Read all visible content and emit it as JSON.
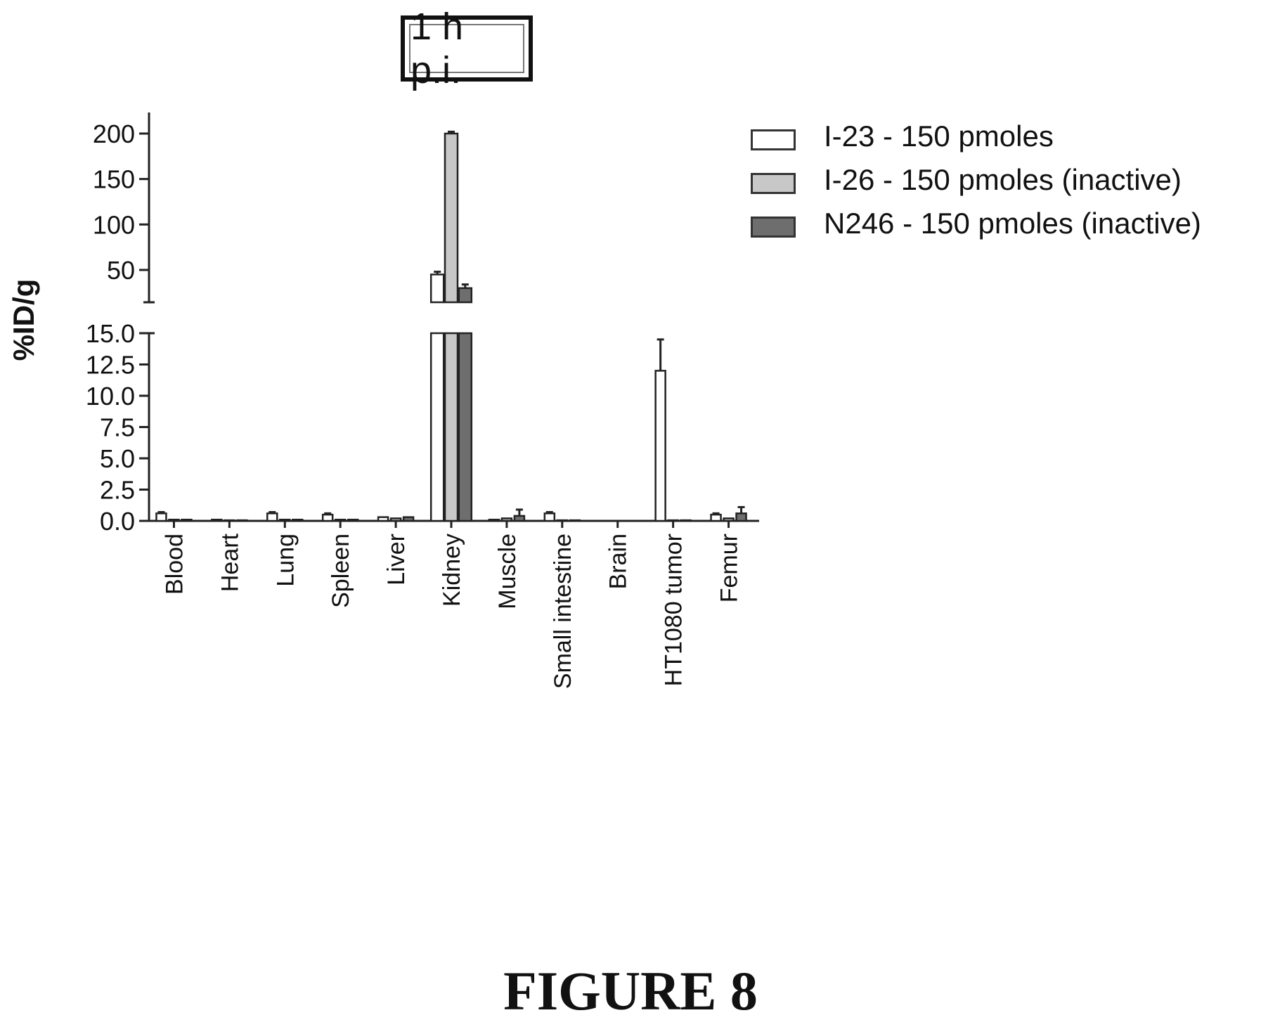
{
  "figure_label": "FIGURE 8",
  "chart_data": {
    "type": "bar",
    "title": "1 h p.i.",
    "xlabel": "",
    "ylabel": "%ID/g",
    "categories": [
      "Blood",
      "Heart",
      "Lung",
      "Spleen",
      "Liver",
      "Kidney",
      "Muscle",
      "Small intestine",
      "Brain",
      "HT1080 tumor",
      "Femur"
    ],
    "series": [
      {
        "name": "I-23 - 150 pmoles",
        "color": "#ffffff",
        "values": [
          0.6,
          0.1,
          0.6,
          0.5,
          0.3,
          45,
          0.1,
          0.6,
          0.0,
          12.0,
          0.5
        ],
        "errors": [
          0.1,
          0.05,
          0.1,
          0.1,
          0.05,
          3,
          0.05,
          0.1,
          0.0,
          2.5,
          0.1
        ]
      },
      {
        "name": "I-26 - 150 pmoles (inactive)",
        "color": "#c8c8c8",
        "values": [
          0.1,
          0.05,
          0.1,
          0.1,
          0.2,
          200,
          0.2,
          0.05,
          0.0,
          0.05,
          0.2
        ],
        "errors": [
          0.05,
          0.02,
          0.05,
          0.05,
          0.05,
          2,
          0.05,
          0.02,
          0.0,
          0.02,
          0.05
        ]
      },
      {
        "name": "N246 - 150 pmoles (inactive)",
        "color": "#6e6e6e",
        "values": [
          0.1,
          0.05,
          0.1,
          0.1,
          0.3,
          30,
          0.4,
          0.05,
          0.0,
          0.05,
          0.6
        ],
        "errors": [
          0.05,
          0.02,
          0.05,
          0.05,
          0.05,
          4,
          0.5,
          0.02,
          0.0,
          0.02,
          0.5
        ]
      }
    ],
    "y_axis_segments": [
      {
        "range": [
          0,
          15.0
        ],
        "ticks": [
          "0.0",
          "2.5",
          "5.0",
          "7.5",
          "10.0",
          "12.5",
          "15.0"
        ],
        "tick_values": [
          0,
          2.5,
          5,
          7.5,
          10,
          12.5,
          15
        ]
      },
      {
        "range": [
          15,
          215
        ],
        "ticks": [
          "50",
          "100",
          "150",
          "200"
        ],
        "tick_values": [
          50,
          100,
          150,
          200
        ]
      }
    ],
    "legend_position": "top-right",
    "grid": false
  }
}
